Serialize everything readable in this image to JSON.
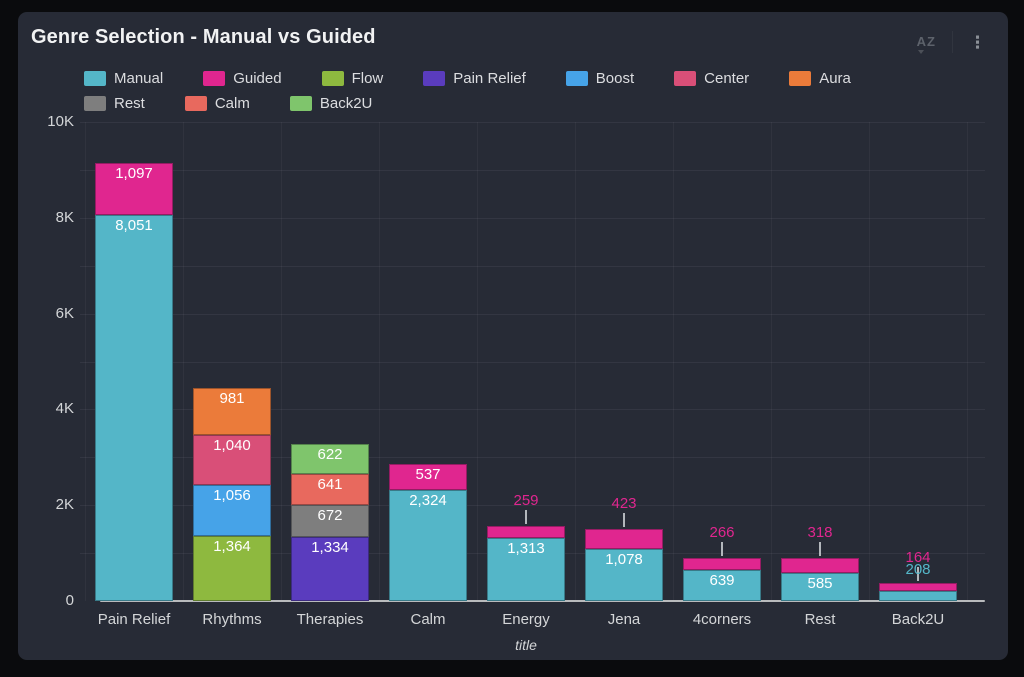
{
  "header": {
    "title": "Genre Selection - Manual vs Guided",
    "sort_label": "AZ",
    "menu_glyph": "⋮"
  },
  "legend": {
    "rows": [
      [
        "Manual",
        "Guided",
        "Flow",
        "Pain Relief",
        "Boost",
        "Center",
        "Aura"
      ],
      [
        "Rest",
        "Calm",
        "Back2U"
      ]
    ]
  },
  "chart_data": {
    "type": "bar",
    "stacked": true,
    "title": "Genre Selection - Manual vs Guided",
    "xlabel": "title",
    "ylabel": "",
    "ylim": [
      0,
      10000
    ],
    "grid": true,
    "legend_position": "top",
    "yticks": [
      {
        "value": 0,
        "label": "0"
      },
      {
        "value": 2000,
        "label": "2K"
      },
      {
        "value": 4000,
        "label": "4K"
      },
      {
        "value": 6000,
        "label": "6K"
      },
      {
        "value": 8000,
        "label": "8K"
      },
      {
        "value": 10000,
        "label": "10K"
      }
    ],
    "minor_grid_step": 1000,
    "series_colors": {
      "Manual": "#54b6c8",
      "Guided": "#e0268f",
      "Flow": "#8eb93f",
      "Pain Relief": "#5a3cbe",
      "Boost": "#46a3e8",
      "Center": "#d94f78",
      "Aura": "#eb7b3a",
      "Rest": "#7e7e7e",
      "Calm": "#e8695e",
      "Back2U": "#7fc56c"
    },
    "categories": [
      "Pain Relief",
      "Rhythms",
      "Therapies",
      "Calm",
      "Energy",
      "Jena",
      "4corners",
      "Rest",
      "Back2U"
    ],
    "bars": [
      {
        "category": "Pain Relief",
        "segments": [
          {
            "series": "Manual",
            "value": 8051,
            "label": "8,051",
            "label_placement": "inside"
          },
          {
            "series": "Guided",
            "value": 1097,
            "label": "1,097",
            "label_placement": "inside"
          }
        ]
      },
      {
        "category": "Rhythms",
        "segments": [
          {
            "series": "Flow",
            "value": 1364,
            "label": "1,364",
            "label_placement": "inside"
          },
          {
            "series": "Boost",
            "value": 1056,
            "label": "1,056",
            "label_placement": "inside"
          },
          {
            "series": "Center",
            "value": 1040,
            "label": "1,040",
            "label_placement": "inside"
          },
          {
            "series": "Aura",
            "value": 981,
            "label": "981",
            "label_placement": "inside"
          }
        ]
      },
      {
        "category": "Therapies",
        "segments": [
          {
            "series": "Pain Relief",
            "value": 1334,
            "label": "1,334",
            "label_placement": "inside"
          },
          {
            "series": "Rest",
            "value": 672,
            "label": "672",
            "label_placement": "inside"
          },
          {
            "series": "Calm",
            "value": 641,
            "label": "641",
            "label_placement": "inside"
          },
          {
            "series": "Back2U",
            "value": 622,
            "label": "622",
            "label_placement": "inside"
          }
        ]
      },
      {
        "category": "Calm",
        "segments": [
          {
            "series": "Manual",
            "value": 2324,
            "label": "2,324",
            "label_placement": "inside"
          },
          {
            "series": "Guided",
            "value": 537,
            "label": "537",
            "label_placement": "inside"
          }
        ]
      },
      {
        "category": "Energy",
        "segments": [
          {
            "series": "Manual",
            "value": 1313,
            "label": "1,313",
            "label_placement": "inside"
          },
          {
            "series": "Guided",
            "value": 259,
            "label": "259",
            "label_placement": "outside"
          }
        ]
      },
      {
        "category": "Jena",
        "segments": [
          {
            "series": "Manual",
            "value": 1078,
            "label": "1,078",
            "label_placement": "inside"
          },
          {
            "series": "Guided",
            "value": 423,
            "label": "423",
            "label_placement": "outside"
          }
        ]
      },
      {
        "category": "4corners",
        "segments": [
          {
            "series": "Manual",
            "value": 639,
            "label": "639",
            "label_placement": "inside"
          },
          {
            "series": "Guided",
            "value": 266,
            "label": "266",
            "label_placement": "outside"
          }
        ]
      },
      {
        "category": "Rest",
        "segments": [
          {
            "series": "Manual",
            "value": 585,
            "label": "585",
            "label_placement": "inside"
          },
          {
            "series": "Guided",
            "value": 318,
            "label": "318",
            "label_placement": "outside"
          }
        ]
      },
      {
        "category": "Back2U",
        "segments": [
          {
            "series": "Manual",
            "value": 208,
            "label": "208",
            "label_placement": "outside"
          },
          {
            "series": "Guided",
            "value": 164,
            "label": "164",
            "label_placement": "outside"
          }
        ]
      }
    ]
  }
}
